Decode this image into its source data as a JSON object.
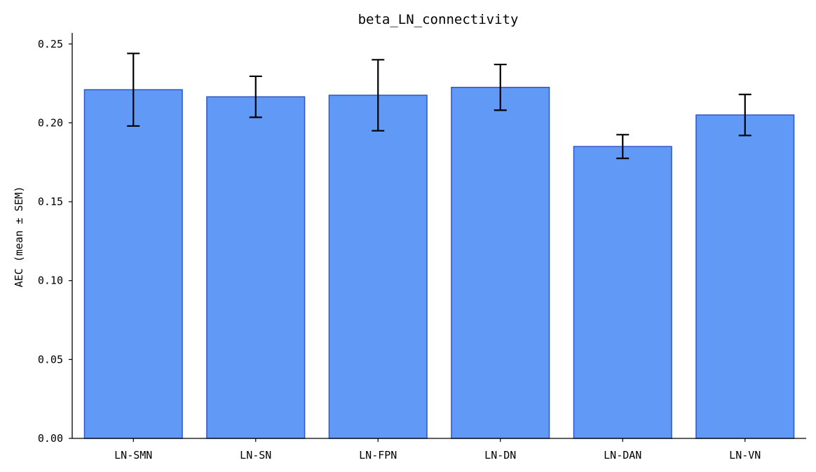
{
  "chart_data": {
    "type": "bar",
    "title": "beta_LN_connectivity",
    "xlabel": "",
    "ylabel": "AEC (mean ± SEM)",
    "categories": [
      "LN-SMN",
      "LN-SN",
      "LN-FPN",
      "LN-DN",
      "LN-DAN",
      "LN-VN"
    ],
    "values": [
      0.221,
      0.2165,
      0.2175,
      0.2225,
      0.185,
      0.205
    ],
    "errors": [
      0.023,
      0.013,
      0.0225,
      0.0145,
      0.0075,
      0.013
    ],
    "ylim": [
      0,
      0.257
    ],
    "yticks": [
      "0.00",
      "0.05",
      "0.10",
      "0.15",
      "0.20",
      "0.25"
    ],
    "ytick_values": [
      0,
      0.05,
      0.1,
      0.15,
      0.2,
      0.25
    ],
    "grid": false,
    "colors": {
      "bar_fill": "#6199f7",
      "bar_edge": "#2f56c4",
      "error": "#000000",
      "axis": "#000000"
    }
  }
}
